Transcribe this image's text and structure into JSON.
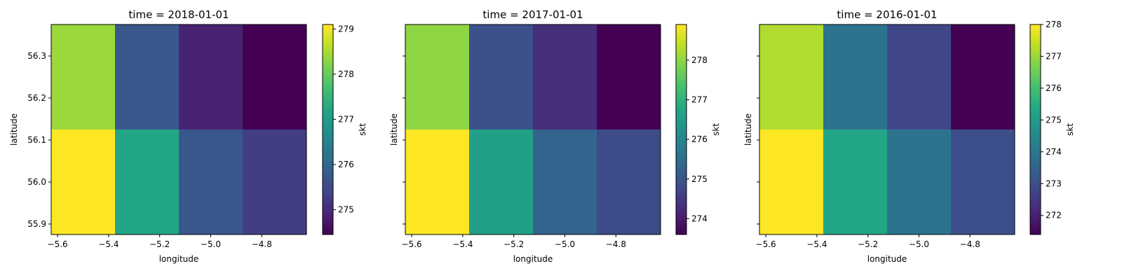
{
  "chart_data": [
    {
      "type": "heatmap",
      "title": "time = 2018-01-01",
      "xlabel": "longitude",
      "ylabel": "latitude",
      "colorbar_label": "skt",
      "colormap": "viridis",
      "x": [
        -5.5,
        -5.25,
        -5.0,
        -4.75
      ],
      "y": [
        56.25,
        56.0
      ],
      "xlim": [
        -5.625,
        -4.625
      ],
      "ylim": [
        55.875,
        56.375
      ],
      "xticks": [
        "−5.6",
        "−5.4",
        "−5.2",
        "−5.0",
        "−4.8"
      ],
      "yticks": [
        "55.9",
        "56.0",
        "56.1",
        "56.2",
        "56.3"
      ],
      "show_yticklabels": true,
      "values": [
        [
          278.4,
          275.7,
          274.9,
          274.45
        ],
        [
          279.1,
          277.2,
          275.7,
          275.3
        ]
      ],
      "vmin": 274.45,
      "vmax": 279.1,
      "colorbar_ticks": [
        "275",
        "276",
        "277",
        "278",
        "279"
      ]
    },
    {
      "type": "heatmap",
      "title": "time = 2017-01-01",
      "xlabel": "longitude",
      "ylabel": "latitude",
      "colorbar_label": "skt",
      "colormap": "viridis",
      "x": [
        -5.5,
        -5.25,
        -5.0,
        -4.75
      ],
      "y": [
        56.25,
        56.0
      ],
      "xlim": [
        -5.625,
        -4.625
      ],
      "ylim": [
        55.875,
        56.375
      ],
      "xticks": [
        "−5.6",
        "−5.4",
        "−5.2",
        "−5.0",
        "−4.8"
      ],
      "yticks": [
        "",
        "",
        "",
        "",
        ""
      ],
      "show_yticklabels": false,
      "values": [
        [
          278.0,
          274.9,
          274.3,
          273.6
        ],
        [
          278.9,
          276.6,
          275.3,
          274.8
        ]
      ],
      "vmin": 273.6,
      "vmax": 278.9,
      "colorbar_ticks": [
        "274",
        "275",
        "276",
        "277",
        "278"
      ]
    },
    {
      "type": "heatmap",
      "title": "time = 2016-01-01",
      "xlabel": "longitude",
      "ylabel": "latitude",
      "colorbar_label": "skt",
      "colormap": "viridis",
      "x": [
        -5.5,
        -5.25,
        -5.0,
        -4.75
      ],
      "y": [
        56.25,
        56.0
      ],
      "xlim": [
        -5.625,
        -4.625
      ],
      "ylim": [
        55.875,
        56.375
      ],
      "xticks": [
        "−5.6",
        "−5.4",
        "−5.2",
        "−5.0",
        "−4.8"
      ],
      "yticks": [
        "",
        "",
        "",
        "",
        ""
      ],
      "show_yticklabels": false,
      "values": [
        [
          277.2,
          273.9,
          272.8,
          271.4
        ],
        [
          278.0,
          275.3,
          273.9,
          273.0
        ]
      ],
      "vmin": 271.4,
      "vmax": 278.0,
      "colorbar_ticks": [
        "272",
        "273",
        "274",
        "275",
        "276",
        "277",
        "278"
      ]
    }
  ]
}
